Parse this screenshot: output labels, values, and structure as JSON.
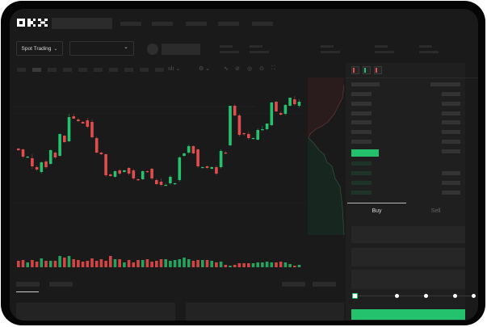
{
  "header": {
    "logo": "OKX",
    "nav_items": 5
  },
  "market_bar": {
    "mode_select": "Spot Trading"
  },
  "trade_panel": {
    "tabs": [
      {
        "label": "Buy",
        "active": true
      },
      {
        "label": "Sell",
        "active": false
      }
    ],
    "slider_percent": 0
  },
  "colors": {
    "up": "#25c26e",
    "down": "#e04d4d",
    "background": "#1a1a1a",
    "panel": "#1f1f1f"
  },
  "icons": [
    "chevron-down-icon",
    "line-tool-icon",
    "ruler-icon",
    "camera-icon",
    "settings-icon",
    "fullscreen-icon",
    "orderbook-both-icon",
    "orderbook-buy-icon",
    "orderbook-sell-icon"
  ],
  "chart_data": {
    "type": "candlestick",
    "title": "",
    "xlabel": "",
    "ylabel": "",
    "ylim": [
      10,
      205
    ],
    "grid": true,
    "candles_ohlc": [
      [
        117,
        118,
        114,
        115
      ],
      [
        116,
        117,
        105,
        107
      ],
      [
        106,
        108,
        105,
        107
      ],
      [
        105,
        110,
        92,
        95
      ],
      [
        94,
        96,
        89,
        91
      ],
      [
        88,
        101,
        86,
        100
      ],
      [
        101,
        103,
        92,
        94
      ],
      [
        98,
        116,
        97,
        115
      ],
      [
        112,
        113,
        104,
        106
      ],
      [
        108,
        136,
        107,
        135
      ],
      [
        133,
        134,
        124,
        125
      ],
      [
        126,
        160,
        125,
        156
      ],
      [
        157,
        160,
        154,
        154
      ],
      [
        153,
        155,
        150,
        151
      ],
      [
        150,
        151,
        148,
        148
      ],
      [
        152,
        155,
        142,
        144
      ],
      [
        150,
        153,
        130,
        131
      ],
      [
        130,
        132,
        111,
        112
      ],
      [
        112,
        113,
        109,
        110
      ],
      [
        110,
        111,
        82,
        84
      ],
      [
        85,
        86,
        82,
        83
      ],
      [
        82,
        90,
        81,
        89
      ],
      [
        90,
        92,
        84,
        86
      ],
      [
        88,
        91,
        87,
        90
      ],
      [
        93,
        94,
        84,
        86
      ],
      [
        90,
        92,
        78,
        80
      ],
      [
        79,
        80,
        77,
        78
      ],
      [
        79,
        90,
        78,
        89
      ],
      [
        89,
        90,
        87,
        88
      ],
      [
        92,
        93,
        78,
        80
      ],
      [
        78,
        80,
        72,
        73
      ],
      [
        76,
        80,
        70,
        72
      ],
      [
        72,
        74,
        71,
        72
      ],
      [
        74,
        84,
        72,
        82
      ],
      [
        73,
        75,
        72,
        74
      ],
      [
        78,
        108,
        76,
        106
      ],
      [
        108,
        112,
        107,
        111
      ],
      [
        112,
        122,
        110,
        120
      ],
      [
        120,
        121,
        110,
        111
      ],
      [
        116,
        117,
        93,
        95
      ],
      [
        94,
        95,
        93,
        94
      ],
      [
        95,
        96,
        92,
        93
      ],
      [
        92,
        95,
        91,
        94
      ],
      [
        94,
        96,
        84,
        86
      ],
      [
        94,
        116,
        92,
        114
      ],
      [
        112,
        114,
        110,
        111
      ],
      [
        121,
        170,
        120,
        170
      ],
      [
        170,
        172,
        157,
        158
      ],
      [
        158,
        160,
        132,
        134
      ],
      [
        136,
        137,
        133,
        135
      ],
      [
        135,
        138,
        128,
        130
      ],
      [
        130,
        131,
        129,
        130
      ],
      [
        128,
        142,
        127,
        140
      ],
      [
        140,
        145,
        139,
        141
      ],
      [
        141,
        148,
        140,
        148
      ],
      [
        146,
        175,
        145,
        174
      ],
      [
        175,
        176,
        162,
        163
      ],
      [
        161,
        163,
        158,
        159
      ],
      [
        160,
        172,
        158,
        171
      ],
      [
        170,
        180,
        169,
        180
      ],
      [
        178,
        182,
        170,
        172
      ],
      [
        170,
        178,
        168,
        175
      ]
    ],
    "volume": [
      8,
      9,
      6,
      9,
      7,
      11,
      8,
      8,
      8,
      14,
      12,
      14,
      10,
      9,
      7,
      8,
      11,
      8,
      10,
      8,
      14,
      10,
      10,
      6,
      9,
      6,
      9,
      9,
      10,
      7,
      8,
      10,
      10,
      8,
      9,
      10,
      12,
      10,
      8,
      9,
      9,
      9,
      8,
      6,
      7,
      3,
      2,
      3,
      5,
      5,
      5,
      5,
      6,
      6,
      7,
      6,
      6,
      7,
      6,
      4,
      2,
      3
    ]
  }
}
